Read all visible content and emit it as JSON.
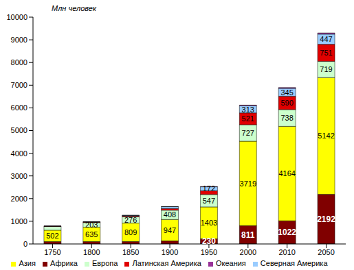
{
  "chart_data": {
    "type": "bar",
    "stacked": true,
    "data_labels": true,
    "grid": false,
    "legend": "bottom",
    "ylabel": "Млн человек",
    "categories": [
      "1750",
      "1800",
      "1850",
      "1900",
      "1950",
      "2000",
      "2010",
      "2050"
    ],
    "ylim": [
      0,
      10000
    ],
    "yticks": [
      0,
      1000,
      2000,
      3000,
      4000,
      5000,
      6000,
      7000,
      8000,
      9000,
      10000
    ],
    "series": [
      {
        "name": "Африка",
        "color": "#800000",
        "values": [
          106,
          107,
          111,
          133,
          230,
          811,
          1022,
          2192
        ],
        "value_labels": [
          null,
          null,
          null,
          null,
          "230",
          "811",
          "1022",
          "2192"
        ]
      },
      {
        "name": "Азия",
        "color": "#FFFF00",
        "values": [
          502,
          635,
          809,
          947,
          1403,
          3719,
          4164,
          5142
        ],
        "value_labels": [
          "502",
          "635",
          "809",
          "947",
          "1403",
          "3719",
          "4164",
          "5142"
        ]
      },
      {
        "name": "Европа",
        "color": "#CCFFCC",
        "values": [
          163,
          203,
          276,
          408,
          547,
          727,
          738,
          719
        ],
        "value_labels": [
          null,
          "203",
          "276",
          "408",
          "547",
          "727",
          "738",
          "719"
        ]
      },
      {
        "name": "Латинская Америка",
        "color": "#E00000",
        "values": [
          16,
          24,
          38,
          74,
          167,
          521,
          590,
          751
        ],
        "value_labels": [
          null,
          null,
          null,
          null,
          null,
          "521",
          "590",
          "751"
        ]
      },
      {
        "name": "Северная Америка",
        "color": "#99CCFF",
        "values": [
          2,
          7,
          26,
          82,
          172,
          313,
          345,
          447
        ],
        "value_labels": [
          null,
          null,
          null,
          null,
          "172",
          "313",
          "345",
          "447"
        ]
      },
      {
        "name": "Океания",
        "color": "#993399",
        "values": [
          2,
          2,
          2,
          6,
          13,
          31,
          37,
          51
        ],
        "value_labels": [
          null,
          null,
          null,
          null,
          null,
          null,
          null,
          null
        ]
      }
    ]
  }
}
